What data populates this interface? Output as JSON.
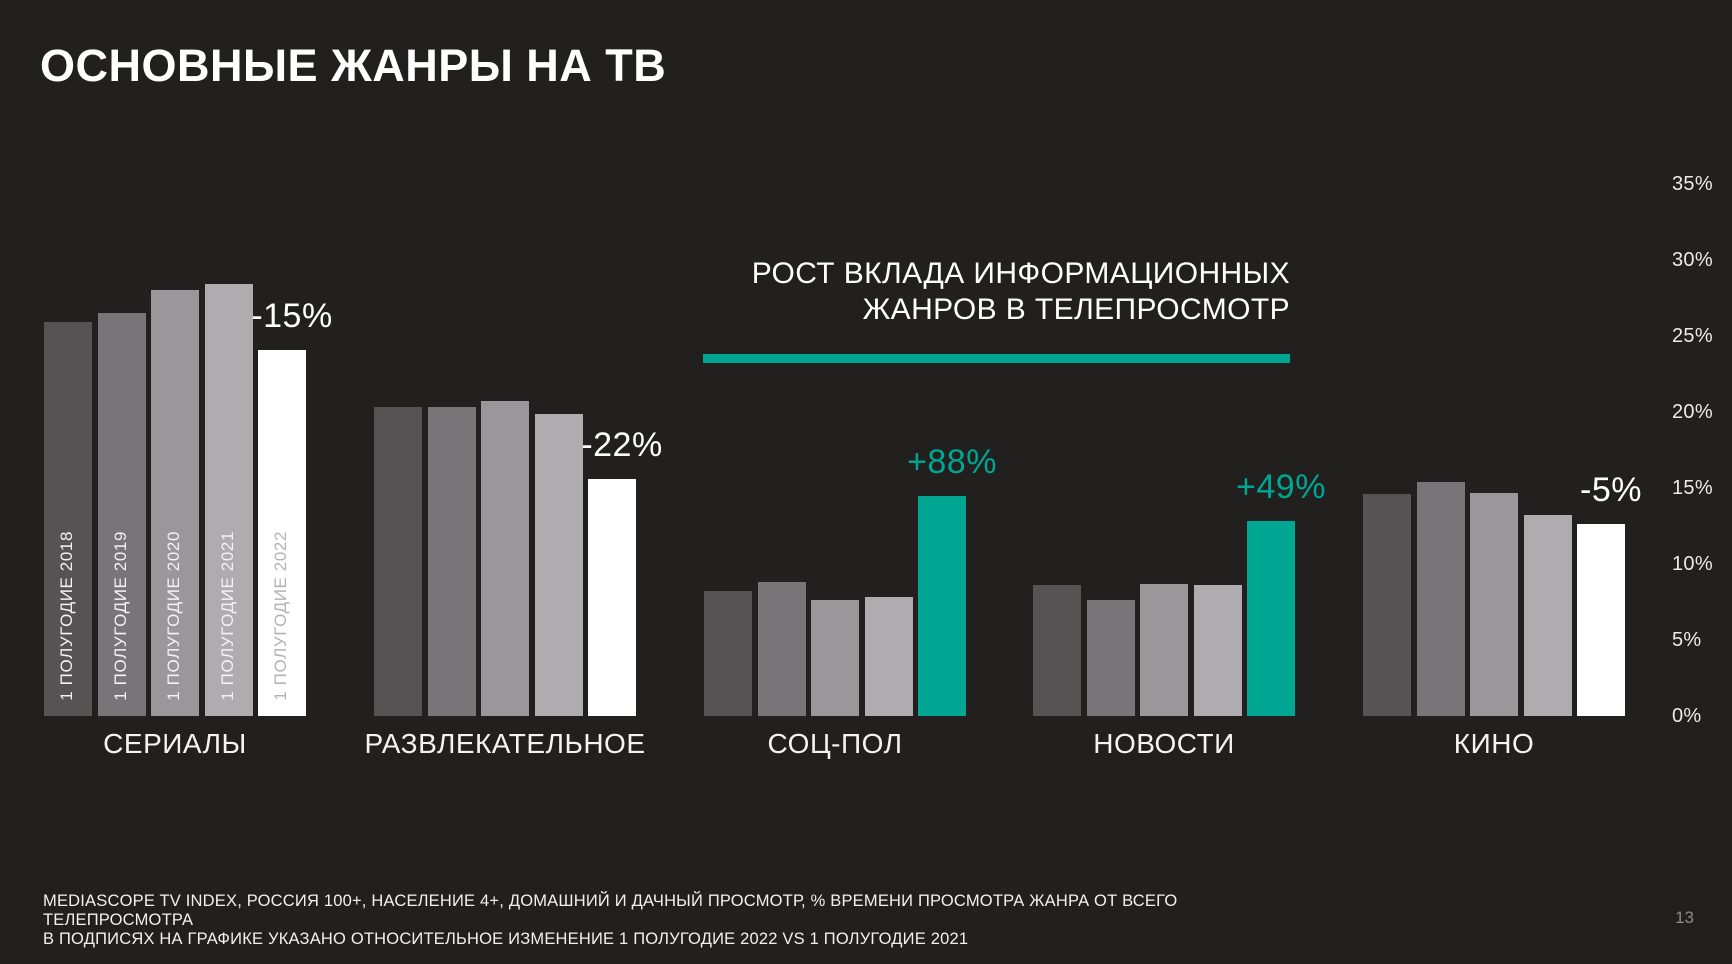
{
  "page": {
    "background": "#21201E",
    "page_number": "13"
  },
  "title": "ОСНОВНЫЕ ЖАНРЫ НА ТВ",
  "callout": {
    "line1": "РОСТ ВКЛАДА ИНФОРМАЦИОННЫХ",
    "line2": "ЖАНРОВ В ТЕЛЕПРОСМОТР",
    "rule_color": "#00A692"
  },
  "footer": {
    "line1": "MEDIASCOPE TV INDEX, РОССИЯ 100+, НАСЕЛЕНИЕ 4+, ДОМАШНИЙ И ДАЧНЫЙ ПРОСМОТР, % ВРЕМЕНИ ПРОСМОТРА ЖАНРА ОТ ВСЕГО ТЕЛЕПРОСМОТРА",
    "line2": "В ПОДПИСЯХ НА ГРАФИКЕ УКАЗАНО ОТНОСИТЕЛЬНОЕ ИЗМЕНЕНИЕ 1 ПОЛУГОДИЕ 2022 VS 1 ПОЛУГОДИЕ 2021"
  },
  "chart_data": {
    "type": "bar",
    "unit": "%",
    "ylim": [
      0,
      35
    ],
    "yticks": [
      "0%",
      "5%",
      "10%",
      "15%",
      "20%",
      "25%",
      "30%",
      "35%"
    ],
    "grid": false,
    "legend_position": "in-bar-labels-first-group-only",
    "series_labels": [
      "1 ПОЛУГОДИЕ 2018",
      "1 ПОЛУГОДИЕ 2019",
      "1 ПОЛУГОДИЕ 2020",
      "1 ПОЛУГОДИЕ 2021",
      "1 ПОЛУГОДИЕ 2022"
    ],
    "series_colors": [
      "#565355",
      "#787578",
      "#9A979A",
      "#AFACAF",
      "#FFFFFF"
    ],
    "highlight_color": "#00A692",
    "bar_label_colors": [
      "#F4F2F3",
      "#F4F2F3",
      "#F4F2F3",
      "#F4F2F3",
      "#B5B2B4"
    ],
    "groups": [
      {
        "category": "СЕРИАЛЫ",
        "values": [
          25.9,
          26.5,
          28.0,
          28.4,
          24.1
        ],
        "change": "-15%",
        "highlight": false,
        "show_year_labels": true
      },
      {
        "category": "РАЗВЛЕКАТЕЛЬНОЕ",
        "values": [
          20.3,
          20.3,
          20.7,
          19.9,
          15.6
        ],
        "change": "-22%",
        "highlight": false,
        "show_year_labels": false
      },
      {
        "category": "СОЦ-ПОЛ",
        "values": [
          8.2,
          8.8,
          7.6,
          7.8,
          14.5
        ],
        "change": "+88%",
        "highlight": true,
        "show_year_labels": false
      },
      {
        "category": "НОВОСТИ",
        "values": [
          8.6,
          7.6,
          8.7,
          8.6,
          12.8
        ],
        "change": "+49%",
        "highlight": true,
        "show_year_labels": false
      },
      {
        "category": "КИНО",
        "values": [
          14.6,
          15.4,
          14.7,
          13.2,
          12.6
        ],
        "change": "-5%",
        "highlight": false,
        "show_year_labels": false
      }
    ]
  }
}
